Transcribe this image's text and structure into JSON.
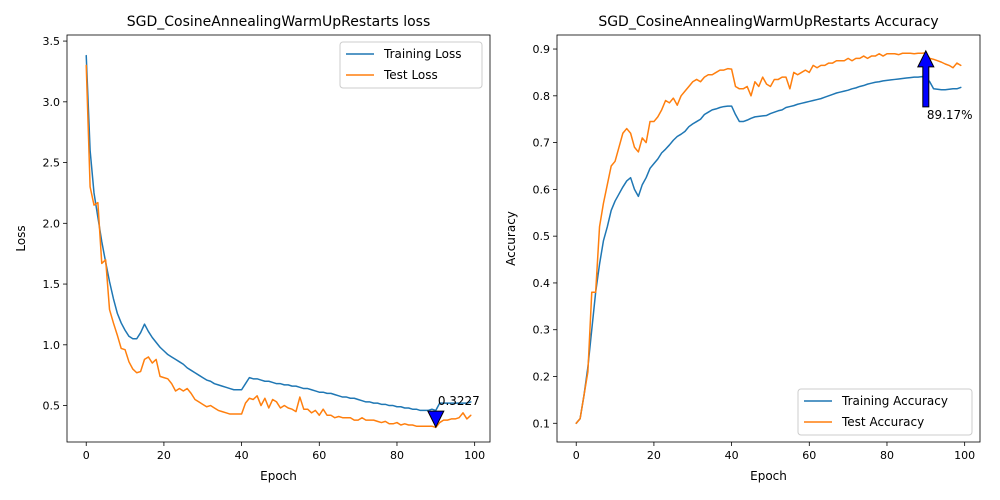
{
  "colors": {
    "train": "#1f77b4",
    "test": "#ff7f0e",
    "marker": "#0000ff"
  },
  "chart_data": [
    {
      "type": "line",
      "title": "SGD_CosineAnnealingWarmUpRestarts loss",
      "xlabel": "Epoch",
      "ylabel": "Loss",
      "xlim": [
        -4.95,
        103.95
      ],
      "ylim": [
        0.2,
        3.55
      ],
      "xticks": [
        0,
        20,
        40,
        60,
        80,
        100
      ],
      "yticks": [
        0.5,
        1.0,
        1.5,
        2.0,
        2.5,
        3.0,
        3.5
      ],
      "ytick_labels": [
        "0.5",
        "1.0",
        "1.5",
        "2.0",
        "2.5",
        "3.0",
        "3.5"
      ],
      "legend_position": "upper right",
      "grid": false,
      "annotation": {
        "text": "0.3227",
        "x": 90,
        "y": 0.3227,
        "marker": "down-triangle"
      },
      "series": [
        {
          "name": "Training Loss",
          "x": [
            0,
            1,
            2,
            3,
            4,
            5,
            6,
            7,
            8,
            9,
            10,
            11,
            12,
            13,
            14,
            15,
            16,
            17,
            18,
            19,
            20,
            21,
            22,
            23,
            24,
            25,
            26,
            27,
            28,
            29,
            30,
            31,
            32,
            33,
            34,
            35,
            36,
            37,
            38,
            39,
            40,
            41,
            42,
            43,
            44,
            45,
            46,
            47,
            48,
            49,
            50,
            51,
            52,
            53,
            54,
            55,
            56,
            57,
            58,
            59,
            60,
            61,
            62,
            63,
            64,
            65,
            66,
            67,
            68,
            69,
            70,
            71,
            72,
            73,
            74,
            75,
            76,
            77,
            78,
            79,
            80,
            81,
            82,
            83,
            84,
            85,
            86,
            87,
            88,
            89,
            90,
            91,
            92,
            93,
            94,
            95,
            96,
            97,
            98,
            99
          ],
          "values": [
            3.38,
            2.6,
            2.25,
            2.05,
            1.85,
            1.68,
            1.52,
            1.38,
            1.26,
            1.18,
            1.12,
            1.07,
            1.05,
            1.05,
            1.1,
            1.17,
            1.11,
            1.06,
            1.02,
            0.98,
            0.95,
            0.92,
            0.9,
            0.88,
            0.86,
            0.84,
            0.81,
            0.79,
            0.77,
            0.75,
            0.73,
            0.71,
            0.7,
            0.68,
            0.67,
            0.66,
            0.65,
            0.64,
            0.63,
            0.63,
            0.63,
            0.68,
            0.73,
            0.72,
            0.72,
            0.71,
            0.7,
            0.7,
            0.69,
            0.68,
            0.68,
            0.67,
            0.67,
            0.66,
            0.66,
            0.65,
            0.64,
            0.64,
            0.63,
            0.62,
            0.61,
            0.61,
            0.6,
            0.6,
            0.59,
            0.58,
            0.57,
            0.57,
            0.56,
            0.56,
            0.55,
            0.54,
            0.53,
            0.53,
            0.52,
            0.52,
            0.51,
            0.51,
            0.5,
            0.5,
            0.49,
            0.49,
            0.48,
            0.48,
            0.47,
            0.47,
            0.46,
            0.46,
            0.46,
            0.47,
            0.46,
            0.52,
            0.52,
            0.52,
            0.52,
            0.52,
            0.52,
            0.52,
            0.52,
            0.53
          ]
        },
        {
          "name": "Test Loss",
          "x": [
            0,
            1,
            2,
            3,
            4,
            5,
            6,
            7,
            8,
            9,
            10,
            11,
            12,
            13,
            14,
            15,
            16,
            17,
            18,
            19,
            20,
            21,
            22,
            23,
            24,
            25,
            26,
            27,
            28,
            29,
            30,
            31,
            32,
            33,
            34,
            35,
            36,
            37,
            38,
            39,
            40,
            41,
            42,
            43,
            44,
            45,
            46,
            47,
            48,
            49,
            50,
            51,
            52,
            53,
            54,
            55,
            56,
            57,
            58,
            59,
            60,
            61,
            62,
            63,
            64,
            65,
            66,
            67,
            68,
            69,
            70,
            71,
            72,
            73,
            74,
            75,
            76,
            77,
            78,
            79,
            80,
            81,
            82,
            83,
            84,
            85,
            86,
            87,
            88,
            89,
            90,
            91,
            92,
            93,
            94,
            95,
            96,
            97,
            98,
            99
          ],
          "values": [
            3.3,
            2.3,
            2.15,
            2.17,
            1.67,
            1.7,
            1.29,
            1.18,
            1.08,
            0.97,
            0.96,
            0.86,
            0.8,
            0.77,
            0.78,
            0.88,
            0.9,
            0.85,
            0.88,
            0.74,
            0.73,
            0.72,
            0.68,
            0.62,
            0.64,
            0.62,
            0.64,
            0.6,
            0.55,
            0.53,
            0.51,
            0.49,
            0.5,
            0.48,
            0.46,
            0.45,
            0.44,
            0.43,
            0.43,
            0.43,
            0.43,
            0.52,
            0.56,
            0.55,
            0.58,
            0.5,
            0.56,
            0.48,
            0.55,
            0.53,
            0.48,
            0.5,
            0.48,
            0.47,
            0.45,
            0.57,
            0.47,
            0.47,
            0.44,
            0.46,
            0.42,
            0.47,
            0.42,
            0.42,
            0.4,
            0.41,
            0.4,
            0.4,
            0.4,
            0.38,
            0.38,
            0.4,
            0.38,
            0.38,
            0.38,
            0.37,
            0.36,
            0.37,
            0.35,
            0.35,
            0.36,
            0.34,
            0.35,
            0.34,
            0.34,
            0.33,
            0.33,
            0.33,
            0.33,
            0.33,
            0.32,
            0.36,
            0.38,
            0.38,
            0.39,
            0.39,
            0.4,
            0.44,
            0.39,
            0.42
          ]
        }
      ]
    },
    {
      "type": "line",
      "title": "SGD_CosineAnnealingWarmUpRestarts Accuracy",
      "xlabel": "Epoch",
      "ylabel": "Accuracy",
      "xlim": [
        -4.95,
        103.95
      ],
      "ylim": [
        0.06,
        0.93
      ],
      "xticks": [
        0,
        20,
        40,
        60,
        80,
        100
      ],
      "yticks": [
        0.1,
        0.2,
        0.3,
        0.4,
        0.5,
        0.6,
        0.7,
        0.8,
        0.9
      ],
      "ytick_labels": [
        "0.1",
        "0.2",
        "0.3",
        "0.4",
        "0.5",
        "0.6",
        "0.7",
        "0.8",
        "0.9"
      ],
      "legend_position": "lower right",
      "grid": false,
      "annotation": {
        "text": "89.17%",
        "x": 90,
        "y": 0.8917,
        "marker": "up-arrow"
      },
      "series": [
        {
          "name": "Training Accuracy",
          "x": [
            0,
            1,
            2,
            3,
            4,
            5,
            6,
            7,
            8,
            9,
            10,
            11,
            12,
            13,
            14,
            15,
            16,
            17,
            18,
            19,
            20,
            21,
            22,
            23,
            24,
            25,
            26,
            27,
            28,
            29,
            30,
            31,
            32,
            33,
            34,
            35,
            36,
            37,
            38,
            39,
            40,
            41,
            42,
            43,
            44,
            45,
            46,
            47,
            48,
            49,
            50,
            51,
            52,
            53,
            54,
            55,
            56,
            57,
            58,
            59,
            60,
            61,
            62,
            63,
            64,
            65,
            66,
            67,
            68,
            69,
            70,
            71,
            72,
            73,
            74,
            75,
            76,
            77,
            78,
            79,
            80,
            81,
            82,
            83,
            84,
            85,
            86,
            87,
            88,
            89,
            90,
            91,
            92,
            93,
            94,
            95,
            96,
            97,
            98,
            99
          ],
          "values": [
            0.1,
            0.11,
            0.16,
            0.22,
            0.3,
            0.38,
            0.44,
            0.49,
            0.52,
            0.555,
            0.575,
            0.59,
            0.605,
            0.618,
            0.625,
            0.6,
            0.585,
            0.61,
            0.625,
            0.645,
            0.655,
            0.665,
            0.678,
            0.686,
            0.695,
            0.705,
            0.713,
            0.718,
            0.724,
            0.734,
            0.74,
            0.745,
            0.75,
            0.76,
            0.765,
            0.77,
            0.772,
            0.775,
            0.777,
            0.778,
            0.778,
            0.76,
            0.745,
            0.745,
            0.748,
            0.752,
            0.755,
            0.756,
            0.757,
            0.758,
            0.762,
            0.765,
            0.768,
            0.77,
            0.775,
            0.777,
            0.779,
            0.782,
            0.784,
            0.786,
            0.788,
            0.79,
            0.792,
            0.794,
            0.797,
            0.8,
            0.803,
            0.806,
            0.808,
            0.81,
            0.812,
            0.815,
            0.817,
            0.82,
            0.822,
            0.825,
            0.827,
            0.829,
            0.83,
            0.832,
            0.833,
            0.834,
            0.835,
            0.836,
            0.837,
            0.838,
            0.839,
            0.84,
            0.84,
            0.841,
            0.84,
            0.83,
            0.815,
            0.814,
            0.813,
            0.813,
            0.814,
            0.815,
            0.815,
            0.818
          ]
        },
        {
          "name": "Test Accuracy",
          "x": [
            0,
            1,
            2,
            3,
            4,
            5,
            6,
            7,
            8,
            9,
            10,
            11,
            12,
            13,
            14,
            15,
            16,
            17,
            18,
            19,
            20,
            21,
            22,
            23,
            24,
            25,
            26,
            27,
            28,
            29,
            30,
            31,
            32,
            33,
            34,
            35,
            36,
            37,
            38,
            39,
            40,
            41,
            42,
            43,
            44,
            45,
            46,
            47,
            48,
            49,
            50,
            51,
            52,
            53,
            54,
            55,
            56,
            57,
            58,
            59,
            60,
            61,
            62,
            63,
            64,
            65,
            66,
            67,
            68,
            69,
            70,
            71,
            72,
            73,
            74,
            75,
            76,
            77,
            78,
            79,
            80,
            81,
            82,
            83,
            84,
            85,
            86,
            87,
            88,
            89,
            90,
            91,
            92,
            93,
            94,
            95,
            96,
            97,
            98,
            99
          ],
          "values": [
            0.1,
            0.11,
            0.16,
            0.21,
            0.38,
            0.38,
            0.52,
            0.57,
            0.61,
            0.65,
            0.66,
            0.69,
            0.72,
            0.73,
            0.72,
            0.69,
            0.68,
            0.71,
            0.7,
            0.745,
            0.745,
            0.755,
            0.77,
            0.79,
            0.785,
            0.795,
            0.78,
            0.8,
            0.81,
            0.82,
            0.83,
            0.835,
            0.83,
            0.84,
            0.845,
            0.845,
            0.85,
            0.855,
            0.855,
            0.858,
            0.857,
            0.82,
            0.815,
            0.815,
            0.82,
            0.8,
            0.83,
            0.82,
            0.84,
            0.825,
            0.82,
            0.835,
            0.835,
            0.84,
            0.84,
            0.815,
            0.85,
            0.845,
            0.85,
            0.855,
            0.85,
            0.865,
            0.86,
            0.865,
            0.865,
            0.87,
            0.87,
            0.875,
            0.875,
            0.875,
            0.88,
            0.875,
            0.88,
            0.88,
            0.885,
            0.88,
            0.885,
            0.885,
            0.89,
            0.885,
            0.89,
            0.89,
            0.89,
            0.888,
            0.891,
            0.891,
            0.891,
            0.89,
            0.891,
            0.891,
            0.8917,
            0.88,
            0.878,
            0.875,
            0.872,
            0.868,
            0.865,
            0.86,
            0.87,
            0.865
          ]
        }
      ]
    }
  ]
}
